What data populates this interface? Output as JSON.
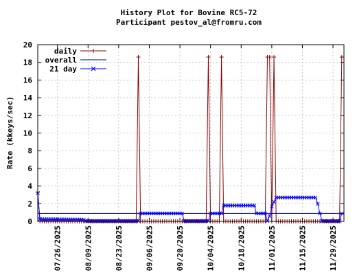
{
  "chart_data": {
    "type": "line",
    "title": "History Plot for Bovine RC5-72",
    "subtitle": "Participant pestov_al@fromru.com",
    "ylabel": "Rate (kkeys/sec)",
    "xlabel": "",
    "ylim": [
      0,
      20
    ],
    "yticks": [
      "0",
      "2",
      "4",
      "6",
      "8",
      "10",
      "12",
      "14",
      "16",
      "18",
      "20"
    ],
    "xlim": [
      "2025-07-17",
      "2025-12-04"
    ],
    "xticks": [
      "07/26/2025",
      "08/09/2025",
      "08/23/2025",
      "09/06/2025",
      "09/20/2025",
      "10/04/2025",
      "10/18/2025",
      "11/01/2025",
      "11/15/2025",
      "11/29/2025"
    ],
    "grid": true,
    "legend_position": "top-left",
    "series": [
      {
        "name": "daily",
        "color": "#8b0000",
        "marker": "plus",
        "default": 0,
        "spikes": [
          {
            "date": "2025-07-17",
            "value": 3.3
          },
          {
            "date": "2025-09-01",
            "value": 18.6
          },
          {
            "date": "2025-10-03",
            "value": 18.6
          },
          {
            "date": "2025-10-09",
            "value": 18.6
          },
          {
            "date": "2025-10-30",
            "value": 18.6
          },
          {
            "date": "2025-10-31",
            "value": 18.6
          },
          {
            "date": "2025-11-02",
            "value": 18.6
          },
          {
            "date": "2025-12-03",
            "value": 18.6
          }
        ],
        "start": "2025-07-17",
        "end": "2025-12-03"
      },
      {
        "name": "overall",
        "color": "#00008b",
        "marker": "none",
        "value": 0.9
      },
      {
        "name": "21 day",
        "color": "#0000ff",
        "marker": "x",
        "points": [
          [
            "2025-07-17",
            3.2
          ],
          [
            "2025-07-18",
            0.25
          ],
          [
            "2025-08-07",
            0.2
          ],
          [
            "2025-08-08",
            0.05
          ],
          [
            "2025-09-01",
            0.05
          ],
          [
            "2025-09-02",
            0.9
          ],
          [
            "2025-09-21",
            0.9
          ],
          [
            "2025-09-22",
            0.05
          ],
          [
            "2025-10-03",
            0.05
          ],
          [
            "2025-10-04",
            0.9
          ],
          [
            "2025-10-09",
            0.9
          ],
          [
            "2025-10-10",
            1.8
          ],
          [
            "2025-10-24",
            1.8
          ],
          [
            "2025-10-25",
            0.9
          ],
          [
            "2025-10-29",
            0.9
          ],
          [
            "2025-10-30",
            0.05
          ],
          [
            "2025-10-31",
            0.6
          ],
          [
            "2025-11-01",
            1.7
          ],
          [
            "2025-11-02",
            2.2
          ],
          [
            "2025-11-03",
            2.7
          ],
          [
            "2025-11-21",
            2.7
          ],
          [
            "2025-11-22",
            2.0
          ],
          [
            "2025-11-23",
            0.9
          ],
          [
            "2025-11-24",
            0.05
          ],
          [
            "2025-12-02",
            0.05
          ],
          [
            "2025-12-03",
            0.9
          ]
        ]
      }
    ]
  }
}
